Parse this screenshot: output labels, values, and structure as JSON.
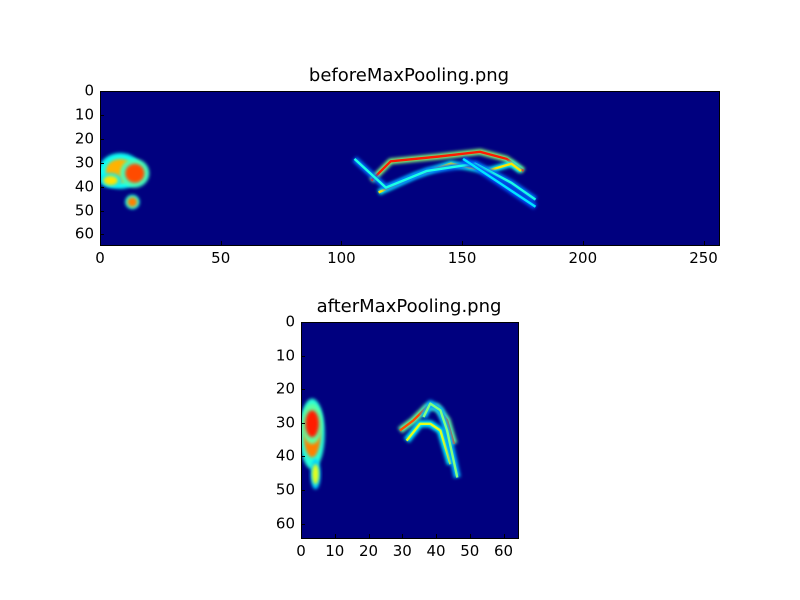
{
  "chart_data": [
    {
      "type": "heatmap",
      "title": "beforeMaxPooling.png",
      "colormap": "jet",
      "xlim": [
        0,
        256
      ],
      "ylim": [
        64,
        0
      ],
      "x_ticks": [
        "0",
        "50",
        "100",
        "150",
        "200",
        "250"
      ],
      "y_ticks": [
        "0",
        "10",
        "20",
        "30",
        "40",
        "50",
        "60"
      ],
      "features": [
        {
          "kind": "blob",
          "x": 8,
          "y": 33,
          "rx": 6,
          "ry": 5,
          "value": 0.7
        },
        {
          "kind": "blob",
          "x": 14,
          "y": 34,
          "rx": 4,
          "ry": 4,
          "value": 0.8
        },
        {
          "kind": "blob",
          "x": 13,
          "y": 46,
          "rx": 2,
          "ry": 2,
          "value": 0.75
        },
        {
          "kind": "blob",
          "x": 4,
          "y": 37,
          "rx": 3,
          "ry": 2,
          "value": 0.65
        },
        {
          "kind": "curve",
          "points": [
            [
              112,
              37
            ],
            [
              120,
              29
            ],
            [
              140,
              27
            ],
            [
              157,
              25
            ],
            [
              168,
              28
            ],
            [
              175,
              33
            ]
          ],
          "value": 0.85
        },
        {
          "kind": "curve",
          "points": [
            [
              115,
              42
            ],
            [
              130,
              35
            ],
            [
              145,
              30
            ],
            [
              160,
              33
            ],
            [
              170,
              30
            ],
            [
              174,
              33
            ]
          ],
          "value": 0.65
        },
        {
          "kind": "curve",
          "points": [
            [
              105,
              28
            ],
            [
              118,
              40
            ],
            [
              135,
              33
            ],
            [
              155,
              30
            ],
            [
              170,
              38
            ],
            [
              180,
              45
            ]
          ],
          "value": 0.4
        },
        {
          "kind": "curve",
          "points": [
            [
              150,
              28
            ],
            [
              165,
              38
            ],
            [
              180,
              48
            ]
          ],
          "value": 0.35
        }
      ]
    },
    {
      "type": "heatmap",
      "title": "afterMaxPooling.png",
      "colormap": "jet",
      "xlim": [
        0,
        64
      ],
      "ylim": [
        64,
        0
      ],
      "x_ticks": [
        "0",
        "10",
        "20",
        "30",
        "40",
        "50",
        "60"
      ],
      "y_ticks": [
        "0",
        "10",
        "20",
        "30",
        "40",
        "50",
        "60"
      ],
      "features": [
        {
          "kind": "blob",
          "x": 3,
          "y": 33,
          "rx": 2.5,
          "ry": 7,
          "value": 0.75
        },
        {
          "kind": "blob",
          "x": 3,
          "y": 30,
          "rx": 2,
          "ry": 4,
          "value": 0.85
        },
        {
          "kind": "blob",
          "x": 4,
          "y": 45,
          "rx": 1,
          "ry": 3,
          "value": 0.6
        },
        {
          "kind": "curve",
          "points": [
            [
              29,
              32
            ],
            [
              33,
              29
            ],
            [
              37,
              25
            ],
            [
              40,
              25
            ],
            [
              43,
              29
            ],
            [
              45,
              36
            ]
          ],
          "value": 0.8
        },
        {
          "kind": "curve",
          "points": [
            [
              31,
              35
            ],
            [
              35,
              30
            ],
            [
              38,
              30
            ],
            [
              41,
              32
            ],
            [
              44,
              42
            ]
          ],
          "value": 0.6
        },
        {
          "kind": "curve",
          "points": [
            [
              36,
              28
            ],
            [
              38,
              24
            ],
            [
              41,
              26
            ],
            [
              43,
              32
            ],
            [
              46,
              46
            ]
          ],
          "value": 0.5
        }
      ]
    }
  ]
}
